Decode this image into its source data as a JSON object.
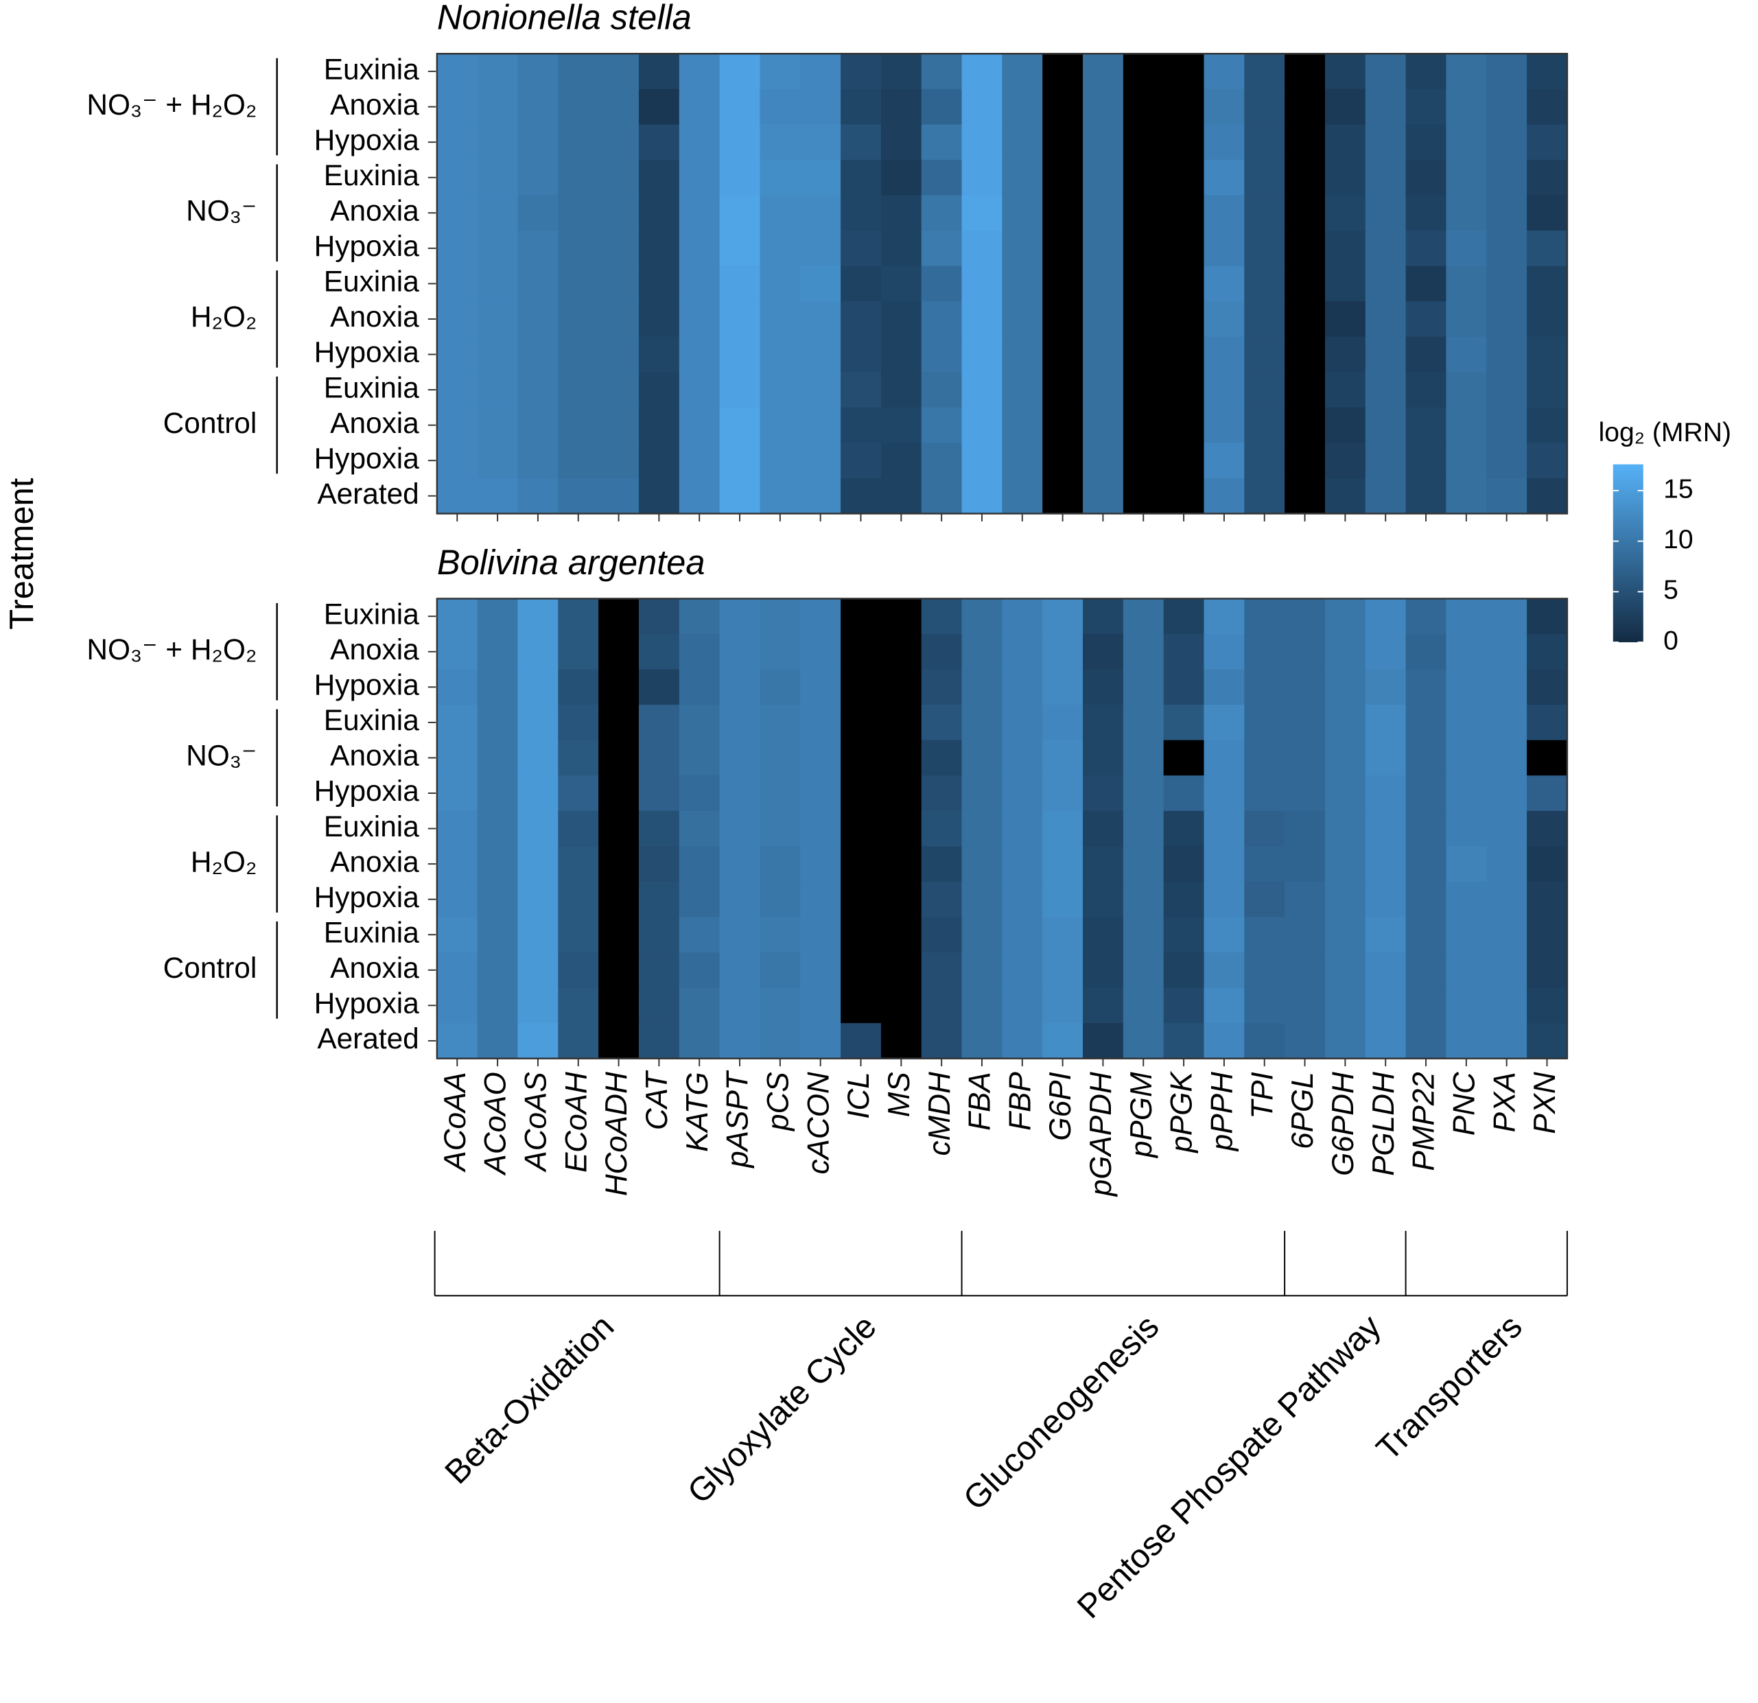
{
  "chart_data": {
    "type": "heatmap",
    "ylabel": "Treatment",
    "columns": [
      "ACoAA",
      "ACoAO",
      "ACoAS",
      "ECoAH",
      "HCoADH",
      "CAT",
      "KATG",
      "pASPT",
      "pCS",
      "cACON",
      "ICL",
      "MS",
      "cMDH",
      "FBA",
      "FBP",
      "G6PI",
      "pGAPDH",
      "pPGM",
      "pPGK",
      "pPPH",
      "TPI",
      "6PGL",
      "G6PDH",
      "PGLDH",
      "PMP22",
      "PNC",
      "PXA",
      "PXN"
    ],
    "rows": [
      "Euxinia",
      "Anoxia",
      "Hypoxia",
      "Euxinia",
      "Anoxia",
      "Hypoxia",
      "Euxinia",
      "Anoxia",
      "Hypoxia",
      "Euxinia",
      "Anoxia",
      "Hypoxia",
      "Aerated"
    ],
    "row_groups": [
      {
        "label": "NO₃⁻ + H₂O₂",
        "first": 0,
        "last": 2
      },
      {
        "label": "NO₃⁻",
        "first": 3,
        "last": 5
      },
      {
        "label": "H₂O₂",
        "first": 6,
        "last": 8
      },
      {
        "label": "Control",
        "first": 9,
        "last": 11
      }
    ],
    "column_groups": [
      {
        "label": "Beta-Oxidation",
        "first": 0,
        "last": 6
      },
      {
        "label": "Glyoxylate Cycle",
        "first": 7,
        "last": 12
      },
      {
        "label": "Gluconeogenesis",
        "first": 13,
        "last": 20
      },
      {
        "label": "Pentose Phospate Pathway",
        "first": 21,
        "last": 23
      },
      {
        "label": "Transporters",
        "first": 24,
        "last": 27
      }
    ],
    "colorbar": {
      "title": "log₂ (MRN)",
      "lim": [
        0,
        17.6
      ],
      "ticks": [
        0,
        5,
        10,
        15
      ],
      "low_color": "#132B43",
      "high_color": "#56B1F7",
      "na_color": "#000000"
    },
    "panels": [
      {
        "title": "Nonionella stella",
        "values": [
          [
            12,
            11.5,
            10.5,
            9,
            9,
            3,
            12,
            15.5,
            12.5,
            12,
            4,
            3,
            9,
            15.5,
            10,
            null,
            9,
            null,
            null,
            11,
            5,
            null,
            3,
            8,
            3,
            9,
            8,
            3
          ],
          [
            12,
            11.5,
            10.5,
            9,
            9,
            1.5,
            12,
            15.5,
            12,
            12,
            3.5,
            2.5,
            7.5,
            15.5,
            10,
            null,
            9,
            null,
            null,
            10.5,
            5,
            null,
            2,
            8,
            3.5,
            9,
            8,
            2.5
          ],
          [
            12,
            11.5,
            10.5,
            9,
            9,
            4,
            12,
            15.5,
            12.5,
            12.5,
            5,
            2.5,
            10,
            15.5,
            10,
            null,
            9,
            null,
            null,
            11,
            5,
            null,
            3,
            8,
            3,
            9,
            8,
            4
          ],
          [
            12,
            11.5,
            10.5,
            9,
            9,
            3,
            12,
            15.5,
            13,
            13,
            3.5,
            2,
            8,
            15.5,
            10,
            null,
            9,
            null,
            null,
            12,
            5,
            null,
            3,
            8,
            2.5,
            9,
            8,
            2.5
          ],
          [
            12,
            11.5,
            10,
            9,
            9,
            3,
            12,
            16,
            12.5,
            12.5,
            3.5,
            3,
            10,
            16,
            10,
            null,
            9,
            null,
            null,
            11,
            5,
            null,
            3.5,
            8,
            3,
            9,
            8,
            2
          ],
          [
            12,
            11.5,
            10.5,
            9,
            9,
            3,
            12,
            16,
            12.5,
            12.5,
            4,
            3,
            10.5,
            15.5,
            10,
            null,
            9,
            null,
            null,
            11,
            5,
            null,
            3,
            8,
            4,
            9.5,
            8,
            5
          ],
          [
            12,
            11.5,
            10.5,
            9,
            9,
            3,
            12,
            15.5,
            12.5,
            13,
            3,
            3.5,
            8.5,
            15.5,
            10,
            null,
            9,
            null,
            null,
            12,
            5,
            null,
            3,
            8,
            2,
            9,
            8,
            3
          ],
          [
            12,
            11.5,
            10.5,
            9,
            9,
            3,
            12,
            15.5,
            12.5,
            12.5,
            4,
            3,
            9.5,
            15.5,
            10,
            null,
            9,
            null,
            null,
            11.5,
            5,
            null,
            1.5,
            8,
            4,
            9,
            8,
            3
          ],
          [
            12,
            11.5,
            10.5,
            9,
            9,
            3.5,
            12,
            15.5,
            12.5,
            12.5,
            4,
            3,
            9.5,
            15.5,
            10,
            null,
            9,
            null,
            null,
            11,
            5,
            null,
            2.5,
            8,
            2.5,
            9.5,
            8,
            3.5
          ],
          [
            12,
            11.5,
            10.5,
            9,
            9,
            3,
            12,
            15.5,
            12.5,
            12.5,
            4.5,
            3,
            9,
            15.5,
            10,
            null,
            9,
            null,
            null,
            11,
            5,
            null,
            3,
            8,
            3,
            9,
            8,
            3.5
          ],
          [
            12,
            11.5,
            10.5,
            9,
            9,
            3,
            12,
            16,
            12.5,
            12.5,
            3.5,
            3.5,
            10,
            15.5,
            10,
            null,
            9,
            null,
            null,
            11,
            5,
            null,
            2,
            8,
            3.5,
            9,
            8,
            3
          ],
          [
            12,
            11.5,
            10.5,
            9,
            9,
            3,
            12,
            16,
            12.5,
            12.5,
            4,
            3,
            9,
            15.5,
            10,
            null,
            9,
            null,
            null,
            12,
            5,
            null,
            2.5,
            8,
            3.5,
            9,
            8,
            4
          ],
          [
            12,
            12,
            11,
            9.5,
            9.5,
            3,
            12,
            16,
            12.5,
            12.5,
            3,
            3,
            9,
            15.5,
            10,
            null,
            9,
            null,
            null,
            11,
            5,
            null,
            3,
            8,
            3.5,
            9,
            8.5,
            2.5
          ]
        ]
      },
      {
        "title": "Bolivina argentea",
        "values": [
          [
            12.5,
            10,
            14.5,
            6,
            null,
            4.5,
            9,
            11,
            10.5,
            11,
            null,
            null,
            5,
            9,
            11,
            12.5,
            3.5,
            9,
            3,
            12.5,
            8,
            8,
            10,
            12,
            8,
            11,
            11,
            2
          ],
          [
            12.5,
            10,
            14.5,
            6,
            null,
            5,
            8.5,
            11,
            10.5,
            11,
            null,
            null,
            4,
            9,
            11,
            12.5,
            2.5,
            9,
            4,
            12,
            8,
            8,
            10,
            12,
            7.5,
            11,
            11,
            3
          ],
          [
            12,
            10,
            14.5,
            5,
            null,
            3,
            8.5,
            11,
            10,
            11,
            null,
            null,
            4.5,
            9,
            11,
            12.5,
            3,
            9,
            4,
            11,
            8,
            8,
            10,
            11.5,
            8,
            11,
            11,
            2.5
          ],
          [
            12.5,
            10,
            14.5,
            5.5,
            null,
            7,
            9,
            11,
            10.5,
            11,
            null,
            null,
            5.5,
            9,
            11,
            12,
            3.5,
            9,
            6,
            12.5,
            8,
            8,
            10,
            12.5,
            8,
            11,
            11,
            4
          ],
          [
            12.5,
            10,
            14.5,
            6,
            null,
            7,
            9,
            11,
            10.5,
            11,
            null,
            null,
            3.5,
            9,
            11,
            12.5,
            3.5,
            9,
            null,
            12,
            8,
            8,
            10,
            12.5,
            8,
            11,
            11,
            null
          ],
          [
            12.5,
            10,
            14.5,
            7,
            null,
            7,
            8.5,
            11,
            10.5,
            11,
            null,
            null,
            4.5,
            9,
            11,
            12.5,
            4,
            9,
            7.5,
            12,
            8,
            8,
            10,
            12,
            8,
            11,
            11,
            7
          ],
          [
            12,
            10,
            14.5,
            5.5,
            null,
            5,
            9,
            11,
            10.5,
            11,
            null,
            null,
            5,
            9,
            11,
            13,
            3,
            9,
            3,
            12,
            7,
            7.5,
            10,
            12,
            8,
            11,
            11,
            2.5
          ],
          [
            12,
            10,
            14.5,
            6,
            null,
            4.5,
            8.5,
            11,
            10,
            11,
            null,
            null,
            3.5,
            9,
            11,
            13,
            3.5,
            9,
            2.5,
            12,
            7.5,
            7.5,
            10,
            12,
            8,
            11.5,
            11,
            2
          ],
          [
            12,
            10,
            14.5,
            6,
            null,
            5,
            8.5,
            11,
            10,
            11,
            null,
            null,
            4.5,
            9,
            11,
            13,
            3.5,
            9,
            3,
            12,
            7,
            8,
            10,
            12,
            8,
            11,
            11,
            2.5
          ],
          [
            12.5,
            10,
            14.5,
            6,
            null,
            5,
            9.5,
            11,
            10.5,
            11,
            null,
            null,
            4,
            9,
            11,
            12.5,
            3,
            9,
            3.5,
            12.5,
            8,
            8,
            10,
            12.5,
            8,
            11,
            11,
            2.5
          ],
          [
            12,
            10,
            14.5,
            5.5,
            null,
            5,
            8.5,
            11,
            10,
            11,
            null,
            null,
            4.5,
            9,
            11,
            12.5,
            3,
            9,
            3,
            11.5,
            8,
            8,
            10,
            12,
            8,
            11,
            11,
            2.5
          ],
          [
            12,
            10,
            14.5,
            6,
            null,
            5,
            9,
            11,
            10.5,
            11,
            null,
            null,
            4.5,
            9,
            11,
            12.5,
            3.5,
            9,
            4,
            12.5,
            8,
            8,
            10,
            12,
            8,
            11,
            11,
            3
          ],
          [
            12.5,
            10,
            15,
            6,
            null,
            5,
            9,
            11,
            10.5,
            11,
            4,
            null,
            4.5,
            9,
            11,
            13,
            2,
            9,
            5,
            12,
            7.5,
            8,
            10,
            12,
            8,
            11,
            11,
            3.5
          ]
        ]
      }
    ]
  }
}
